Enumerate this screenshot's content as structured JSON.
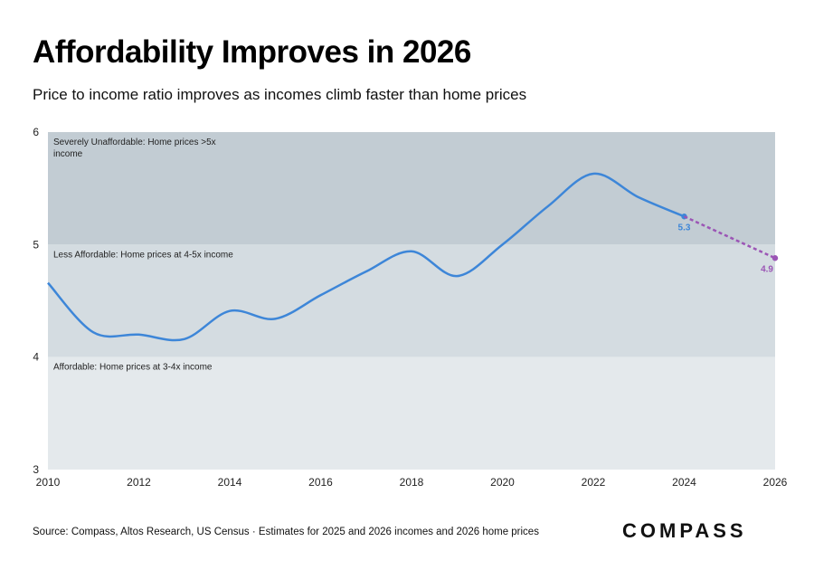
{
  "title": "Affordability Improves in 2026",
  "subtitle": "Price to income ratio improves as incomes climb faster than home prices",
  "source": "Source: Compass, Altos Research, US Census · Estimates for 2025 and 2026 incomes and 2026 home prices",
  "logo": "COMPASS",
  "chart_data": {
    "type": "line",
    "xlim": [
      2010,
      2026
    ],
    "ylim": [
      3,
      6
    ],
    "x_ticks": [
      "2010",
      "2012",
      "2014",
      "2016",
      "2018",
      "2020",
      "2022",
      "2024",
      "2026"
    ],
    "y_ticks": [
      "3",
      "4",
      "5",
      "6"
    ],
    "bands": [
      {
        "from": 5,
        "to": 6,
        "label": "Severely Unaffordable: Home prices >5x income",
        "color": "#c2ccd3"
      },
      {
        "from": 4,
        "to": 5,
        "label": "Less Affordable: Home prices at 4-5x income",
        "color": "#d4dce1"
      },
      {
        "from": 3,
        "to": 4,
        "label": "Affordable: Home prices at 3-4x income",
        "color": "#e4e9ec"
      }
    ],
    "series": [
      {
        "style": "solid",
        "color": "#3d86d8",
        "x": [
          2010,
          2011,
          2012,
          2013,
          2014,
          2015,
          2016,
          2017,
          2018,
          2019,
          2020,
          2021,
          2022,
          2023,
          2024
        ],
        "y": [
          4.66,
          4.22,
          4.2,
          4.16,
          4.41,
          4.34,
          4.55,
          4.76,
          4.94,
          4.72,
          5.0,
          5.34,
          5.63,
          5.42,
          5.25
        ],
        "end_label": "5.3"
      },
      {
        "style": "dashed",
        "color": "#9b55b5",
        "x": [
          2024,
          2026
        ],
        "y": [
          5.25,
          4.88
        ],
        "end_label": "4.9"
      }
    ]
  }
}
